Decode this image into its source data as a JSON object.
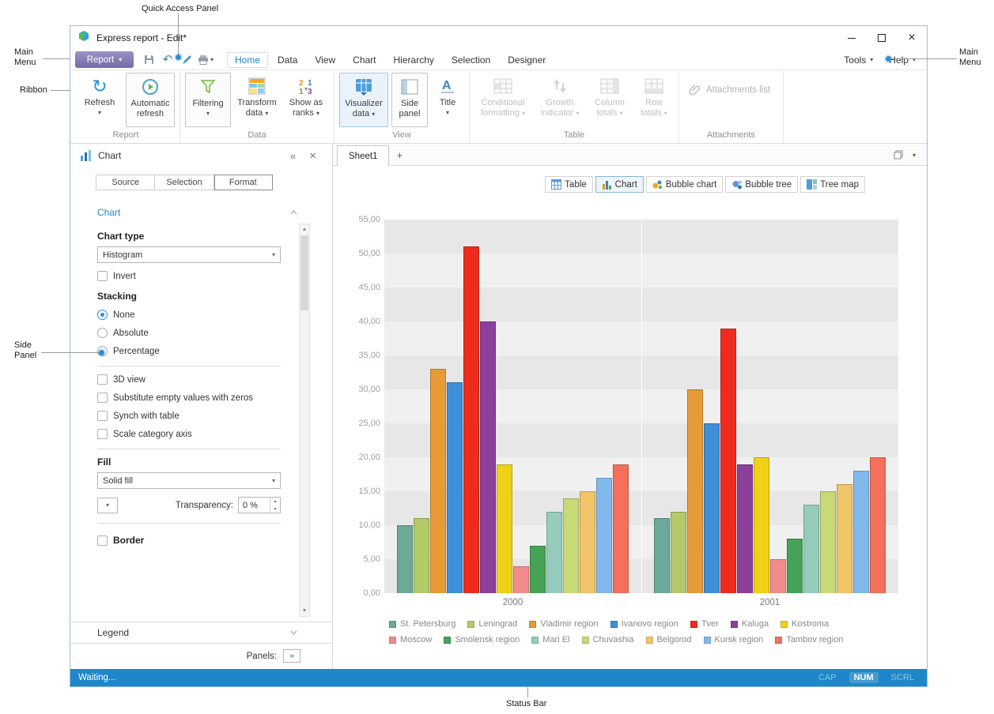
{
  "colors": {
    "accent": "#1E87C9",
    "status_bar": "#1E87C9",
    "report_button": "#776AA8"
  },
  "annotations": {
    "quick_access_panel": "Quick Access Panel",
    "main_menu": "Main Menu",
    "ribbon": "Ribbon",
    "side_panel": "Side Panel",
    "status_bar": "Status Bar"
  },
  "window": {
    "title": "Express report - Edit*"
  },
  "menu": {
    "report_button": "Report",
    "tabs": [
      "Home",
      "Data",
      "View",
      "Chart",
      "Hierarchy",
      "Selection",
      "Designer"
    ],
    "active_tab": "Home",
    "tools": "Tools",
    "help": "Help"
  },
  "ribbon": {
    "buttons": {
      "refresh": "Refresh",
      "automatic_refresh": "Automatic refresh",
      "filtering": "Filtering",
      "transform_data": "Transform data",
      "show_as_ranks": "Show as ranks",
      "visualizer_data": "Visualizer data",
      "side_panel": "Side panel",
      "title": "Title",
      "conditional_formatting": "Conditional formatting",
      "growth_indicator": "Growth indicator",
      "column_totals": "Column totals",
      "row_totals": "Row totals",
      "attachments_list": "Attachments list"
    },
    "group_labels": [
      "Report",
      "Data",
      "View",
      "Table",
      "Attachments"
    ]
  },
  "side_panel": {
    "title": "Chart",
    "tabs": [
      "Source",
      "Selection",
      "Format"
    ],
    "active_tab": "Format",
    "section": "Chart",
    "chart_type_label": "Chart type",
    "chart_type_value": "Histogram",
    "invert_label": "Invert",
    "stacking_label": "Stacking",
    "stacking_options": [
      "None",
      "Absolute",
      "Percentage"
    ],
    "stacking_selected": "None",
    "options": [
      "3D view",
      "Substitute empty values with zeros",
      "Synch with table",
      "Scale category axis"
    ],
    "fill_label": "Fill",
    "fill_value": "Solid fill",
    "transparency_label": "Transparency:",
    "transparency_value": "0 %",
    "border_label": "Border",
    "legend_section": "Legend",
    "panels_label": "Panels:"
  },
  "sheet": {
    "tab": "Sheet1",
    "add_tab": "+",
    "views": [
      "Table",
      "Chart",
      "Bubble chart",
      "Bubble tree",
      "Tree map"
    ],
    "active_view": "Chart"
  },
  "chart_data": {
    "type": "bar",
    "categories": [
      "2000",
      "2001"
    ],
    "series": [
      {
        "name": "St. Petersburg",
        "color": "#6BAA99",
        "values": [
          10,
          11
        ]
      },
      {
        "name": "Leningrad",
        "color": "#B3C96A",
        "values": [
          11,
          12
        ]
      },
      {
        "name": "Vladimir region",
        "color": "#E79B38",
        "values": [
          33,
          30
        ]
      },
      {
        "name": "Ivanovo region",
        "color": "#3E8FD8",
        "values": [
          31,
          25
        ]
      },
      {
        "name": "Tver",
        "color": "#EF2B1E",
        "values": [
          51,
          39
        ]
      },
      {
        "name": "Kaluga",
        "color": "#8C3F9B",
        "values": [
          40,
          19
        ]
      },
      {
        "name": "Kostroma",
        "color": "#EFD117",
        "values": [
          19,
          20
        ]
      },
      {
        "name": "Moscow",
        "color": "#F28C8C",
        "values": [
          4,
          5
        ]
      },
      {
        "name": "Smolensk region",
        "color": "#46A257",
        "values": [
          7,
          8
        ]
      },
      {
        "name": "Mari El",
        "color": "#96CCBC",
        "values": [
          12,
          13
        ]
      },
      {
        "name": "Chuvashia",
        "color": "#C8D977",
        "values": [
          14,
          15
        ]
      },
      {
        "name": "Belgorod",
        "color": "#F0C468",
        "values": [
          15,
          16
        ]
      },
      {
        "name": "Kursk region",
        "color": "#82B9EC",
        "values": [
          17,
          18
        ]
      },
      {
        "name": "Tambov region",
        "color": "#F4705C",
        "values": [
          19,
          20
        ]
      }
    ],
    "ylim": [
      0,
      55
    ],
    "yticks": [
      "0,00",
      "5,00",
      "10,00",
      "15,00",
      "20,00",
      "25,00",
      "30,00",
      "35,00",
      "40,00",
      "45,00",
      "50,00",
      "55,00"
    ],
    "legend_position": "bottom",
    "legend_rows": 2,
    "grid": "horizontal-bands"
  },
  "status": {
    "text": "Waiting...",
    "indicators": [
      {
        "label": "CAP",
        "active": false
      },
      {
        "label": "NUM",
        "active": true
      },
      {
        "label": "SCRL",
        "active": false
      }
    ]
  }
}
